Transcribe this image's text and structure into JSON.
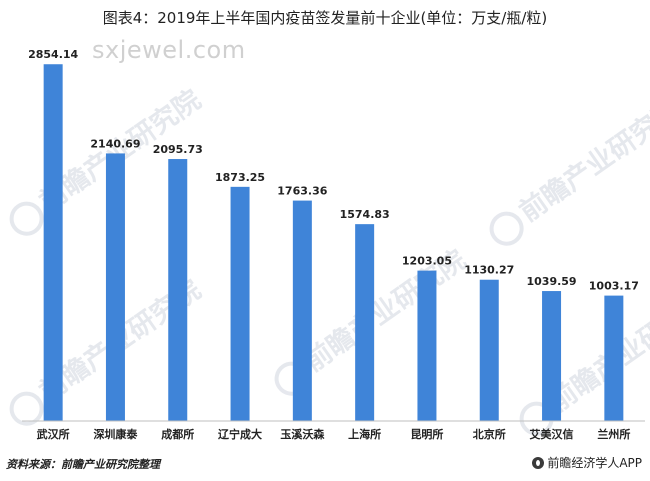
{
  "watermark": {
    "url_text": "sxjewel.com",
    "logo_text": "前瞻产业研究院"
  },
  "footer": {
    "source": "资料来源：前瞻产业研究院整理",
    "app_name": "前瞻经济学人APP"
  },
  "colors": {
    "bar": "#3f84d8",
    "axis": "#bfbfbf"
  },
  "chart_data": {
    "type": "bar",
    "title": "图表4：2019年上半年国内疫苗签发量前十企业(单位：万支/瓶/粒)",
    "categories": [
      "武汉所",
      "深圳康泰",
      "成都所",
      "辽宁成大",
      "玉溪沃森",
      "上海所",
      "昆明所",
      "北京所",
      "艾美汉信",
      "兰州所"
    ],
    "values": [
      2854.14,
      2140.69,
      2095.73,
      1873.25,
      1763.36,
      1574.83,
      1203.05,
      1130.27,
      1039.59,
      1003.17
    ],
    "value_labels": [
      "2854.14",
      "2140.69",
      "2095.73",
      "1873.25",
      "1763.36",
      "1574.83",
      "1203.05",
      "1130.27",
      "1039.59",
      "1003.17"
    ],
    "xlabel": "",
    "ylabel": "",
    "ylim": [
      0,
      3000
    ],
    "grid": false,
    "legend": "none"
  }
}
